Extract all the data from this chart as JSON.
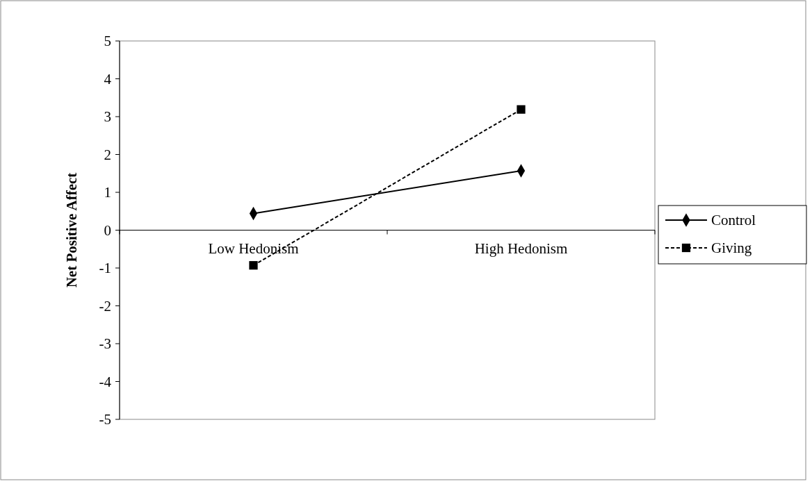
{
  "chart_data": {
    "type": "line",
    "ylabel": "Net Positive Affect",
    "categories": [
      "Low Hedonism",
      "High Hedonism"
    ],
    "series": [
      {
        "name": "Control",
        "color": "#000000",
        "values": [
          0.44,
          1.57
        ],
        "marker": "diamond",
        "line_style": "solid"
      },
      {
        "name": "Giving",
        "color": "#000000",
        "values": [
          -0.93,
          3.19
        ],
        "marker": "square",
        "line_style": "dashed"
      }
    ],
    "ylim": [
      -5,
      5
    ],
    "yticks": [
      -5,
      -4,
      -3,
      -2,
      -1,
      0,
      1,
      2,
      3,
      4,
      5
    ],
    "grid": false,
    "legend": "right"
  }
}
